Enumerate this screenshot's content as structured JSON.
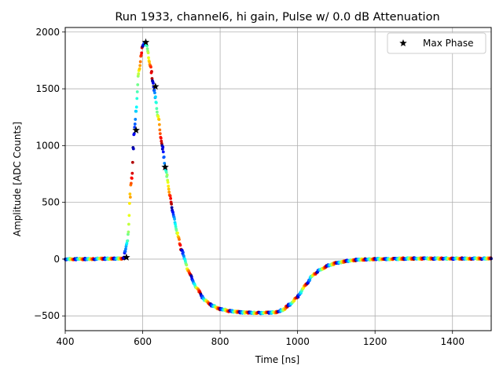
{
  "chart_data": {
    "type": "scatter",
    "title": "Run 1933, channel6, hi gain, Pulse w/ 0.0 dB Attenuation",
    "xlabel": "Time [ns]",
    "ylabel": "Amplitude [ADC Counts]",
    "xlim": [
      400,
      1500
    ],
    "ylim": [
      -630,
      2040
    ],
    "xticks": [
      400,
      600,
      800,
      1000,
      1200,
      1400
    ],
    "yticks": [
      -500,
      0,
      500,
      1000,
      1500,
      2000
    ],
    "grid": true,
    "legend": {
      "position": "top-right",
      "entries": [
        "Max Phase"
      ]
    },
    "colormap": "jet",
    "series": [
      {
        "name": "Max Phase",
        "marker": "star",
        "color": "#000000",
        "x": [
          558,
          583,
          608,
          633,
          658
        ],
        "y": [
          15,
          1135,
          1910,
          1520,
          810
        ]
      }
    ],
    "pulse_profile": {
      "description_points_x": [
        400,
        550,
        560,
        570,
        580,
        590,
        600,
        605,
        610,
        620,
        630,
        640,
        650,
        660,
        670,
        680,
        690,
        700,
        720,
        740,
        760,
        780,
        800,
        830,
        860,
        900,
        940,
        960,
        980,
        1000,
        1020,
        1040,
        1060,
        1080,
        1100,
        1130,
        1160,
        1200,
        1300,
        1400,
        1500
      ],
      "description_points_y": [
        0,
        5,
        150,
        650,
        1200,
        1650,
        1880,
        1910,
        1880,
        1700,
        1480,
        1250,
        1000,
        780,
        560,
        380,
        220,
        80,
        -120,
        -260,
        -360,
        -410,
        -440,
        -460,
        -470,
        -475,
        -470,
        -450,
        -400,
        -330,
        -230,
        -140,
        -90,
        -55,
        -35,
        -15,
        -5,
        0,
        5,
        5,
        5
      ]
    }
  }
}
